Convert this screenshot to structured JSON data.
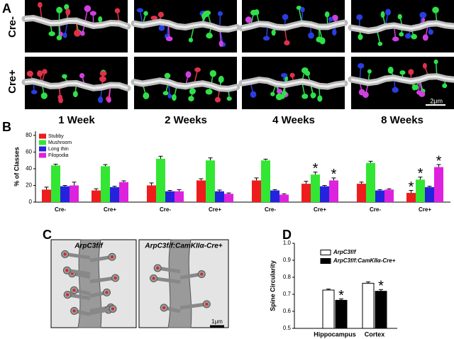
{
  "panel_labels": [
    "A",
    "B",
    "C",
    "D"
  ],
  "panel_a": {
    "row_labels": [
      "Cre-",
      "Cre+"
    ],
    "column_labels": [
      "1 Week",
      "2 Weeks",
      "4 Weeks",
      "8 Weeks"
    ],
    "scale_bar": "2μm"
  },
  "panel_c": {
    "titles": [
      "ArpC3f/f",
      "ArpC3f/f:CamKIIα-Cre+"
    ],
    "scale_bar": "1μm"
  },
  "chart_data": [
    {
      "type": "bar",
      "ylabel": "% of Classes",
      "categories": [
        "Cre-",
        "Cre+",
        "Cre-",
        "Cre+",
        "Cre-",
        "Cre+",
        "Cre-",
        "Cre+"
      ],
      "ylim": [
        0,
        85
      ],
      "yticks": [
        0,
        20,
        40,
        60,
        80
      ],
      "legend": "upper-left",
      "series": [
        {
          "name": "Stubby",
          "color": "#ee1c1c",
          "values": [
            15,
            14,
            20,
            26,
            26,
            22,
            22,
            11
          ],
          "errors": [
            3,
            2,
            3,
            2,
            3,
            3,
            2,
            3
          ],
          "significance": [
            null,
            null,
            null,
            null,
            null,
            null,
            null,
            "*"
          ]
        },
        {
          "name": "Mushroom",
          "color": "#33e633",
          "values": [
            44,
            43,
            52,
            50,
            50,
            33,
            47,
            27
          ],
          "errors": [
            1.5,
            2,
            3,
            3,
            1.5,
            3,
            2,
            3
          ],
          "significance": [
            null,
            null,
            null,
            null,
            null,
            "*",
            null,
            "*"
          ]
        },
        {
          "name": "Long thin",
          "color": "#2323dd",
          "values": [
            19,
            18,
            13,
            13,
            14,
            19,
            14,
            18
          ],
          "errors": [
            1,
            1,
            1,
            1.5,
            1,
            1,
            1,
            1
          ],
          "significance": [
            null,
            null,
            null,
            null,
            null,
            null,
            null,
            null
          ]
        },
        {
          "name": "Filopodia",
          "color": "#dd22dd",
          "values": [
            20,
            24,
            13,
            10,
            9,
            26,
            15,
            42
          ],
          "errors": [
            4,
            1.5,
            2,
            1,
            1,
            3,
            1,
            3
          ],
          "significance": [
            null,
            null,
            null,
            null,
            null,
            "*",
            null,
            "*"
          ]
        }
      ]
    },
    {
      "type": "bar",
      "ylabel": "Spine Circularity",
      "categories": [
        "Hippocampus",
        "Cortex"
      ],
      "ylim": [
        0.5,
        1
      ],
      "yticks": [
        0.5,
        0.6,
        0.7,
        0.8,
        0.9,
        {
          "value": 1,
          "label": "1.0"
        }
      ],
      "legend": "upper-right",
      "series": [
        {
          "name": "ArpC3f/f",
          "color": "#ffffff",
          "values": [
            0.725,
            0.765
          ],
          "errors": [
            0.006,
            0.008
          ],
          "significance": [
            null,
            null
          ]
        },
        {
          "name": "ArpC3f/f:CamKIIα-Cre+",
          "color": "#000000",
          "values": [
            0.665,
            0.718
          ],
          "errors": [
            0.008,
            0.01
          ],
          "significance": [
            "*",
            "*"
          ]
        }
      ]
    }
  ]
}
